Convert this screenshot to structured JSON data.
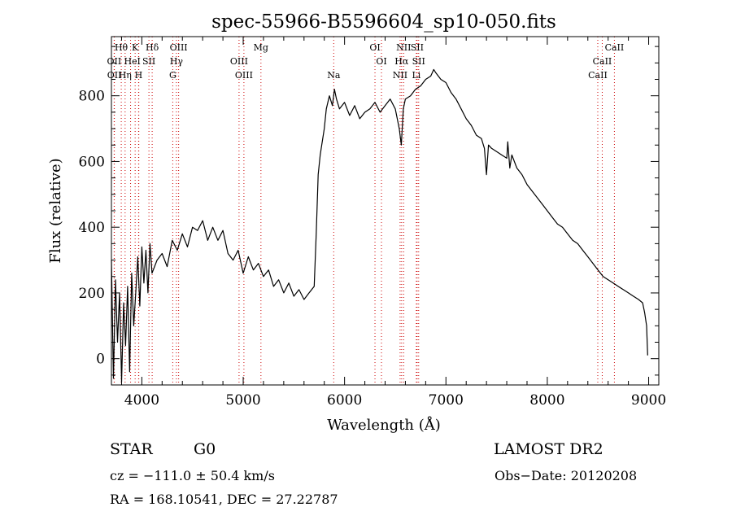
{
  "chart_data": {
    "type": "line",
    "title": "spec-55966-B5596604_sp10-050.fits",
    "xlabel": "Wavelength (Å)",
    "ylabel": "Flux (relative)",
    "xlim": [
      3700,
      9100
    ],
    "ylim": [
      -80,
      980
    ],
    "x_ticks": [
      "4000",
      "5000",
      "6000",
      "7000",
      "8000",
      "9000"
    ],
    "y_ticks": [
      "0",
      "200",
      "400",
      "600",
      "800"
    ],
    "x_tick_values": [
      4000,
      5000,
      6000,
      7000,
      8000,
      9000
    ],
    "y_tick_values": [
      0,
      200,
      400,
      600,
      800
    ],
    "grid": false,
    "series": [
      {
        "color": "#000000",
        "x": [
          3700,
          3720,
          3740,
          3760,
          3780,
          3800,
          3820,
          3840,
          3860,
          3880,
          3900,
          3920,
          3940,
          3960,
          3980,
          4000,
          4020,
          4040,
          4060,
          4080,
          4100,
          4150,
          4200,
          4250,
          4300,
          4350,
          4400,
          4450,
          4500,
          4550,
          4600,
          4650,
          4700,
          4750,
          4800,
          4850,
          4900,
          4950,
          5000,
          5050,
          5100,
          5150,
          5200,
          5250,
          5300,
          5350,
          5400,
          5450,
          5500,
          5550,
          5600,
          5650,
          5700,
          5720,
          5740,
          5760,
          5780,
          5800,
          5820,
          5850,
          5880,
          5900,
          5920,
          5950,
          6000,
          6050,
          6100,
          6150,
          6200,
          6250,
          6300,
          6350,
          6400,
          6450,
          6500,
          6540,
          6560,
          6580,
          6600,
          6650,
          6700,
          6750,
          6800,
          6850,
          6880,
          6900,
          6950,
          7000,
          7050,
          7100,
          7150,
          7200,
          7250,
          7300,
          7350,
          7380,
          7400,
          7420,
          7450,
          7500,
          7550,
          7600,
          7610,
          7630,
          7650,
          7700,
          7750,
          7800,
          7850,
          7900,
          7950,
          8000,
          8050,
          8100,
          8150,
          8200,
          8250,
          8300,
          8350,
          8400,
          8450,
          8500,
          8550,
          8600,
          8650,
          8700,
          8750,
          8800,
          8850,
          8900,
          8940,
          8960,
          8980,
          8990
        ],
        "y": [
          300,
          -60,
          240,
          50,
          200,
          -70,
          170,
          40,
          220,
          -40,
          260,
          100,
          200,
          310,
          160,
          340,
          230,
          330,
          200,
          350,
          260,
          300,
          320,
          280,
          360,
          330,
          380,
          340,
          400,
          390,
          420,
          360,
          400,
          360,
          390,
          320,
          300,
          330,
          260,
          310,
          270,
          290,
          250,
          270,
          220,
          240,
          200,
          230,
          190,
          210,
          180,
          200,
          220,
          380,
          560,
          620,
          660,
          700,
          760,
          800,
          770,
          820,
          790,
          760,
          780,
          740,
          770,
          730,
          750,
          760,
          780,
          750,
          770,
          790,
          760,
          700,
          650,
          760,
          790,
          800,
          820,
          830,
          850,
          860,
          880,
          870,
          850,
          840,
          810,
          790,
          760,
          730,
          710,
          680,
          670,
          640,
          560,
          650,
          640,
          630,
          620,
          610,
          660,
          580,
          620,
          580,
          560,
          530,
          510,
          490,
          470,
          450,
          430,
          410,
          400,
          380,
          360,
          350,
          330,
          310,
          290,
          270,
          250,
          240,
          230,
          220,
          210,
          200,
          190,
          180,
          170,
          140,
          100,
          10
        ]
      }
    ],
    "line_groups": [
      {
        "row": 0,
        "labels": [
          {
            "text": "Hθ",
            "x": 3797
          },
          {
            "text": "K",
            "x": 3934
          },
          {
            "text": "Hδ",
            "x": 4102
          },
          {
            "text": "OIII",
            "x": 4363
          },
          {
            "text": "Mg",
            "x": 5175
          },
          {
            "text": "OI",
            "x": 6300
          },
          {
            "text": "NII",
            "x": 6583
          },
          {
            "text": "SII",
            "x": 6716
          },
          {
            "text": "CaII",
            "x": 8662
          }
        ]
      },
      {
        "row": 1,
        "labels": [
          {
            "text": "OII",
            "x": 3727
          },
          {
            "text": "He",
            "x": 3889
          },
          {
            "text": "I",
            "x": 3970
          },
          {
            "text": "SII",
            "x": 4070
          },
          {
            "text": "Hγ",
            "x": 4341
          },
          {
            "text": "OIII",
            "x": 4959
          },
          {
            "text": "OI",
            "x": 6364
          },
          {
            "text": "Hα",
            "x": 6563
          },
          {
            "text": "SII",
            "x": 6731
          },
          {
            "text": "CaII",
            "x": 8542
          }
        ]
      },
      {
        "row": 2,
        "labels": [
          {
            "text": "OII",
            "x": 3729
          },
          {
            "text": "Hη",
            "x": 3835
          },
          {
            "text": "H",
            "x": 3968
          },
          {
            "text": "G",
            "x": 4305
          },
          {
            "text": "OIII",
            "x": 5007
          },
          {
            "text": "Na",
            "x": 5893
          },
          {
            "text": "NII",
            "x": 6548
          },
          {
            "text": "Li",
            "x": 6708
          },
          {
            "text": "CaII",
            "x": 8498
          }
        ]
      }
    ],
    "line_marker_x": [
      3727,
      3729,
      3797,
      3835,
      3889,
      3934,
      3968,
      3970,
      4070,
      4102,
      4305,
      4341,
      4363,
      4959,
      5007,
      5175,
      5893,
      6300,
      6364,
      6548,
      6563,
      6583,
      6708,
      6716,
      6731,
      8498,
      8542,
      8662
    ],
    "line_marker_color": "#cc0000"
  },
  "info": {
    "object_class": "STAR",
    "subclass": "G0",
    "survey": "LAMOST DR2",
    "redshift": "cz = −111.0 ± 50.4 km/s",
    "obs_date": "Obs−Date: 20120208",
    "coords": "RA = 168.10541, DEC =  27.22787"
  }
}
